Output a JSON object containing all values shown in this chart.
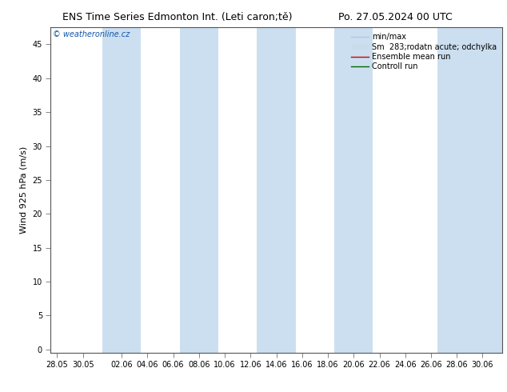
{
  "title_left": "ENS Time Series Edmonton Int. (Leti caron;tě)",
  "title_right": "Po. 27.05.2024 00 UTC",
  "ylabel": "Wind 925 hPa (m/s)",
  "watermark": "© weatheronline.cz",
  "x_tick_labels": [
    "28.05",
    "30.05",
    "02.06",
    "04.06",
    "06.06",
    "08.06",
    "10.06",
    "12.06",
    "14.06",
    "16.06",
    "18.06",
    "20.06",
    "22.06",
    "24.06",
    "26.06",
    "28.06",
    "30.06"
  ],
  "x_tick_positions": [
    0,
    2,
    5,
    7,
    9,
    11,
    13,
    15,
    17,
    19,
    21,
    23,
    25,
    27,
    29,
    31,
    33
  ],
  "yticks": [
    0,
    5,
    10,
    15,
    20,
    25,
    30,
    35,
    40,
    45
  ],
  "ylim": [
    -0.5,
    47.5
  ],
  "xlim": [
    -0.5,
    34.5
  ],
  "shade_bands": [
    [
      3.5,
      6.5
    ],
    [
      9.5,
      12.5
    ],
    [
      15.5,
      18.5
    ],
    [
      21.5,
      24.5
    ],
    [
      29.5,
      34.5
    ]
  ],
  "shade_color": "#ccdff0",
  "bg_color": "#ffffff",
  "plot_bg_color": "#ffffff",
  "border_color": "#555555",
  "title_fontsize": 9,
  "tick_fontsize": 7,
  "ylabel_fontsize": 8,
  "watermark_fontsize": 7,
  "legend_fontsize": 7
}
